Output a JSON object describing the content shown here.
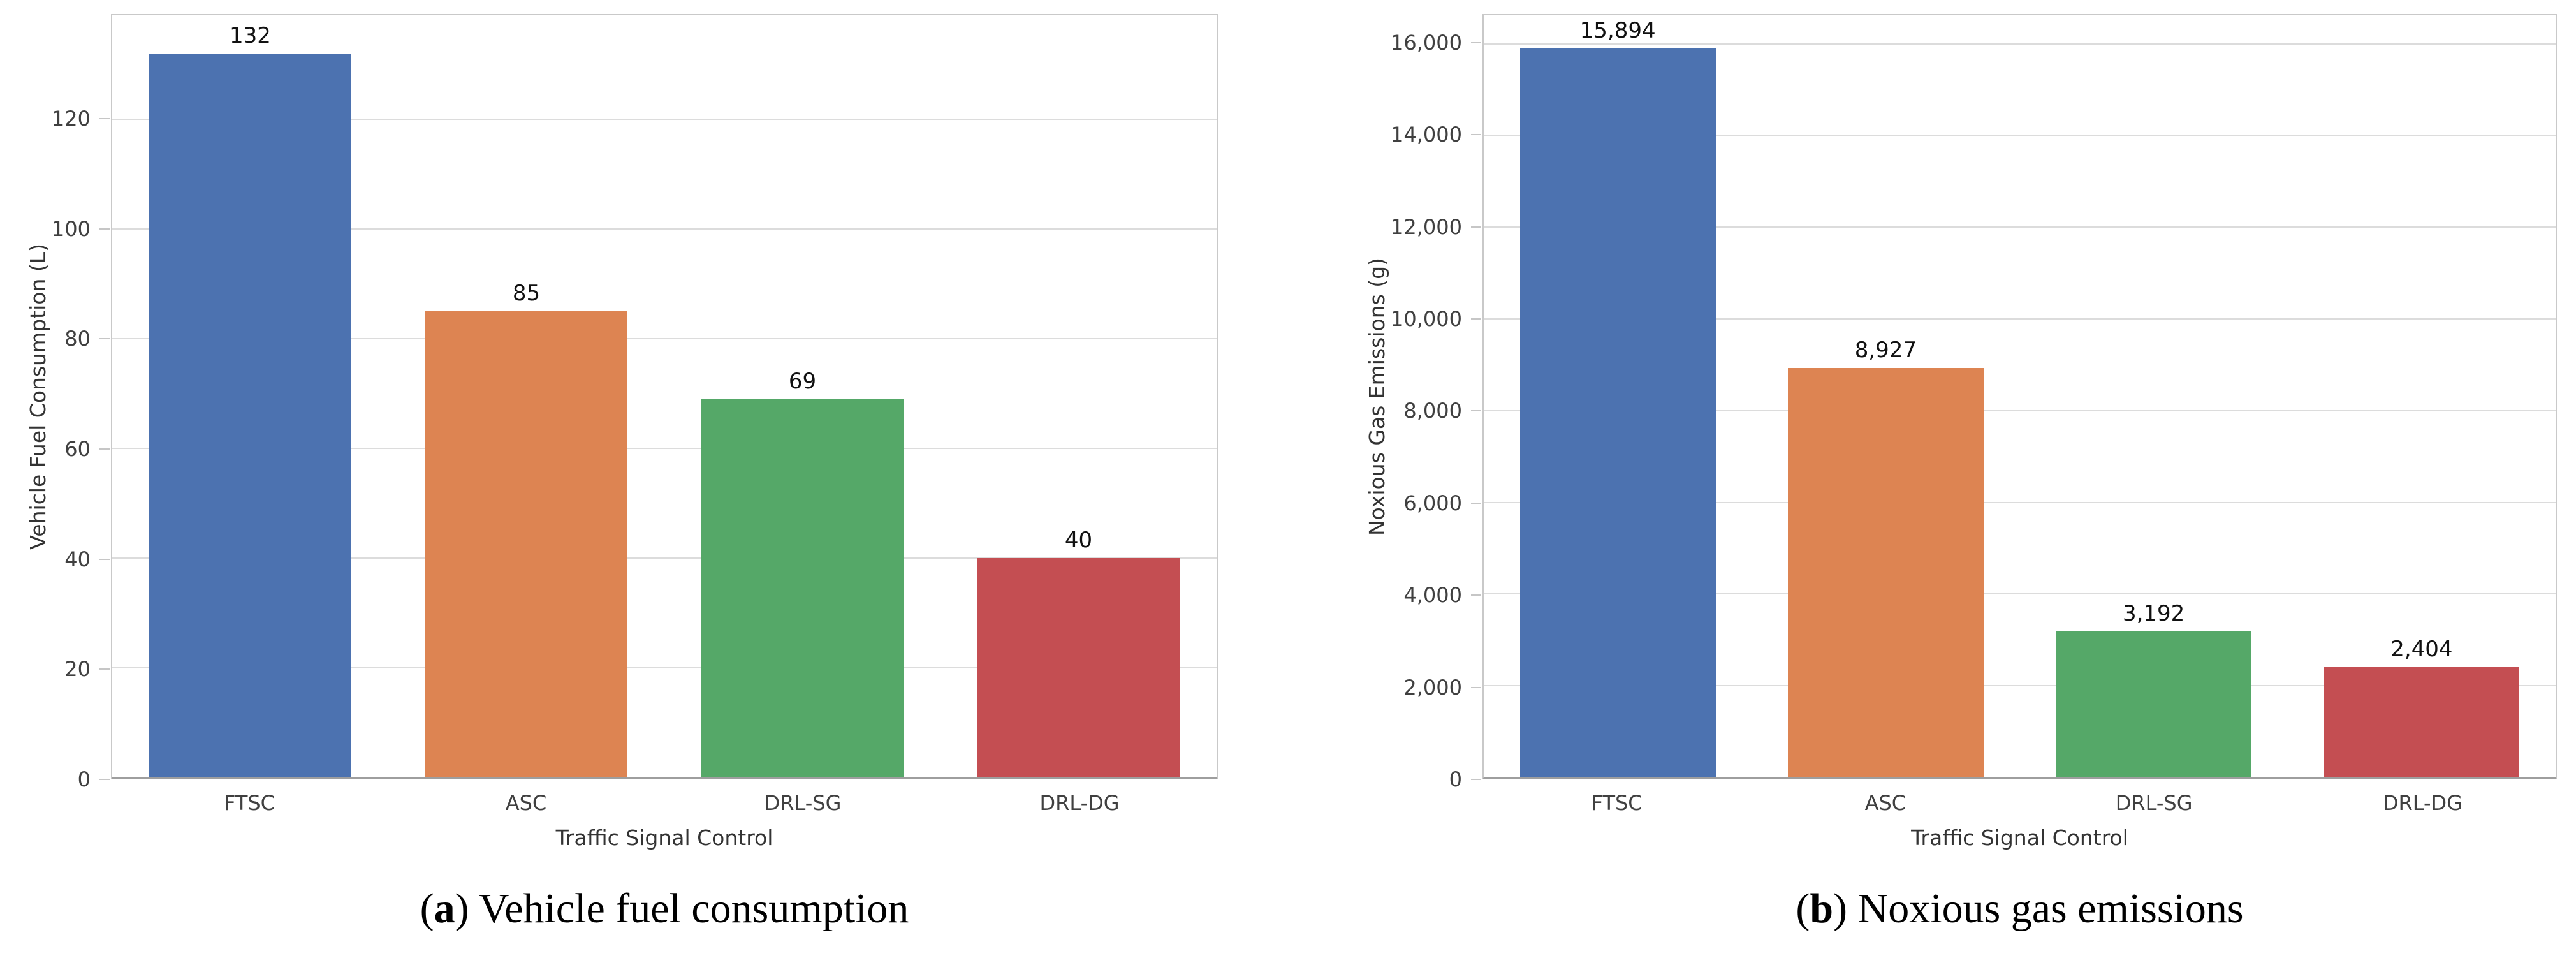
{
  "style": {
    "bar_colors": [
      "#4C72B0",
      "#DD8452",
      "#55A868",
      "#C44E52"
    ],
    "gridline_color": "#dcdcdc",
    "tickmark_color": "#c6c6c6"
  },
  "chart_data": [
    {
      "type": "bar",
      "title": "",
      "ylabel": "Vehicle Fuel Consumption (L)",
      "xlabel": "Traffic Signal Control",
      "categories": [
        "FTSC",
        "ASC",
        "DRL-SG",
        "DRL-DG"
      ],
      "values": [
        132,
        85,
        69,
        40
      ],
      "value_labels": [
        "132",
        "85",
        "69",
        "40"
      ],
      "yticks": [
        0,
        20,
        40,
        60,
        80,
        100,
        120
      ],
      "ytick_labels": [
        "0",
        "20",
        "40",
        "60",
        "80",
        "100",
        "120"
      ],
      "ylim": [
        0,
        139
      ],
      "grid": "horizontal",
      "legend": "none",
      "caption": {
        "prefix": "(",
        "letter": "a",
        "suffix": ") Vehicle fuel consumption"
      }
    },
    {
      "type": "bar",
      "title": "",
      "ylabel": "Noxious Gas Emissions (g)",
      "xlabel": "Traffic Signal Control",
      "categories": [
        "FTSC",
        "ASC",
        "DRL-SG",
        "DRL-DG"
      ],
      "values": [
        15894,
        8927,
        3192,
        2404
      ],
      "value_labels": [
        "15,894",
        "8,927",
        "3,192",
        "2,404"
      ],
      "yticks": [
        0,
        2000,
        4000,
        6000,
        8000,
        10000,
        12000,
        14000,
        16000
      ],
      "ytick_labels": [
        "0",
        "2,000",
        "4,000",
        "6,000",
        "8,000",
        "10,000",
        "12,000",
        "14,000",
        "16,000"
      ],
      "ylim": [
        0,
        16620
      ],
      "grid": "horizontal",
      "legend": "none",
      "caption": {
        "prefix": "(",
        "letter": "b",
        "suffix": ") Noxious gas emissions"
      }
    }
  ]
}
